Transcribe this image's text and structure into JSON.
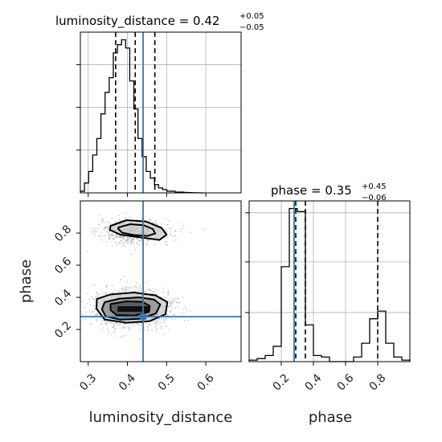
{
  "chart_data": {
    "type": "corner",
    "parameters": [
      "luminosity_distance",
      "phase"
    ],
    "truth": {
      "luminosity_distance": 0.44,
      "phase": 0.28
    },
    "truth_color": "#3b75af",
    "titles": {
      "luminosity_distance": {
        "main": "luminosity_distance = 0.42",
        "plus": "+0.05",
        "minus": "−0.05"
      },
      "phase": {
        "main": "phase = 0.35",
        "plus": "+0.45",
        "minus": "−0.06"
      }
    },
    "axis_labels": {
      "x1": "luminosity_distance",
      "x2": "phase",
      "y_left": "phase"
    },
    "luminosity_distance_ticks": [
      "0.3",
      "0.4",
      "0.5",
      "0.6"
    ],
    "luminosity_distance_tick_values": [
      0.3,
      0.4,
      0.5,
      0.6
    ],
    "phase_ticks": [
      "0.2",
      "0.4",
      "0.6",
      "0.8"
    ],
    "phase_tick_values": [
      0.2,
      0.4,
      0.6,
      0.8
    ],
    "luminosity_distance_range": [
      0.28,
      0.69
    ],
    "phase_range": [
      0.0,
      1.0
    ],
    "luminosity_distance_quantiles": [
      0.37,
      0.42,
      0.47
    ],
    "phase_quantiles": [
      0.29,
      0.35,
      0.8
    ],
    "hist_luminosity_distance": {
      "edges": [
        0.28,
        0.2905,
        0.301,
        0.3115,
        0.322,
        0.3325,
        0.343,
        0.3535,
        0.364,
        0.3745,
        0.385,
        0.3955,
        0.406,
        0.4165,
        0.427,
        0.4375,
        0.448,
        0.4585,
        0.469,
        0.4795,
        0.49,
        0.5005,
        0.511,
        0.5215,
        0.532,
        0.5425,
        0.553,
        0.5635,
        0.574,
        0.5845,
        0.595
      ],
      "counts": [
        1,
        6,
        13,
        23,
        33,
        48,
        61,
        70,
        85,
        90,
        93,
        88,
        68,
        51,
        33,
        22,
        13,
        9,
        5,
        3,
        2,
        1,
        1,
        0.5,
        0.5,
        0.3,
        0.2,
        0.1,
        0.05,
        0
      ]
    },
    "hist_phase": {
      "edges": [
        0.0,
        0.05,
        0.1,
        0.15,
        0.2,
        0.25,
        0.3,
        0.35,
        0.4,
        0.45,
        0.5,
        0.55,
        0.6,
        0.65,
        0.7,
        0.75,
        0.8,
        0.85,
        0.9,
        0.95,
        1.0
      ],
      "counts": [
        1,
        2,
        4,
        10,
        62,
        100,
        98,
        24,
        4,
        3,
        0,
        0,
        0,
        3,
        12,
        28,
        33,
        12,
        3,
        1
      ]
    },
    "contour_levels": [
      {
        "luminosity_distance": [
          0.357,
          0.398,
          0.447,
          0.487,
          0.5,
          0.482,
          0.437,
          0.382,
          0.355
        ],
        "phase": [
          0.845,
          0.88,
          0.872,
          0.832,
          0.79,
          0.757,
          0.772,
          0.79,
          0.82
        ]
      },
      {
        "luminosity_distance": [
          0.377,
          0.407,
          0.441,
          0.465,
          0.471,
          0.451,
          0.415,
          0.387,
          0.377
        ],
        "phase": [
          0.835,
          0.855,
          0.849,
          0.825,
          0.797,
          0.782,
          0.788,
          0.802,
          0.825
        ]
      },
      {
        "luminosity_distance": [
          0.322,
          0.357,
          0.417,
          0.472,
          0.502,
          0.497,
          0.457,
          0.397,
          0.342,
          0.321
        ],
        "phase": [
          0.39,
          0.418,
          0.43,
          0.412,
          0.37,
          0.295,
          0.252,
          0.242,
          0.262,
          0.33
        ]
      },
      {
        "luminosity_distance": [
          0.342,
          0.38,
          0.43,
          0.468,
          0.484,
          0.473,
          0.435,
          0.382,
          0.345,
          0.335
        ],
        "phase": [
          0.37,
          0.392,
          0.4,
          0.386,
          0.355,
          0.3,
          0.267,
          0.261,
          0.281,
          0.325
        ]
      },
      {
        "luminosity_distance": [
          0.357,
          0.397,
          0.438,
          0.457,
          0.455,
          0.417,
          0.372,
          0.357
        ],
        "phase": [
          0.358,
          0.375,
          0.372,
          0.347,
          0.31,
          0.286,
          0.29,
          0.32
        ]
      }
    ]
  }
}
